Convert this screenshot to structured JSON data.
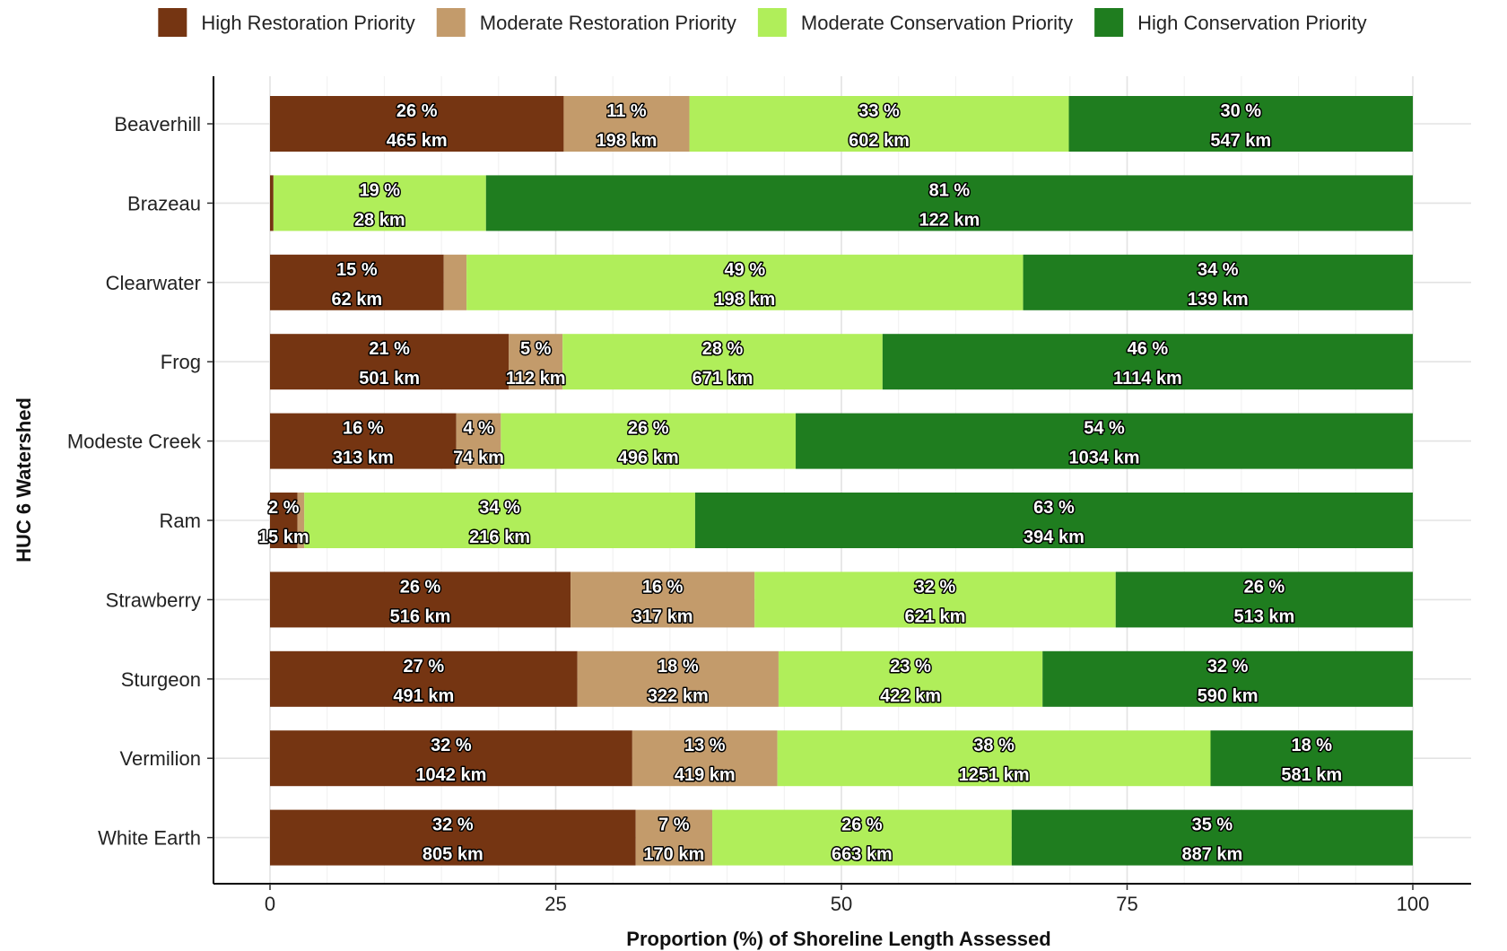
{
  "chart_data": {
    "type": "bar",
    "orientation": "horizontal",
    "stacked": true,
    "xlabel": "Proportion (%) of Shoreline Length Assessed",
    "ylabel": "HUC 6 Watershed",
    "xlim": [
      0,
      100
    ],
    "xticks": [
      0,
      25,
      50,
      75,
      100
    ],
    "grid": true,
    "legend_position": "top",
    "categories": [
      "Beaverhill",
      "Brazeau",
      "Clearwater",
      "Frog",
      "Modeste Creek",
      "Ram",
      "Strawberry",
      "Sturgeon",
      "Vermilion",
      "White Earth"
    ],
    "series": [
      {
        "name": "High Restoration Priority",
        "color": "#753512",
        "values": [
          25.7,
          0.3,
          15.2,
          20.9,
          16.3,
          2.4,
          26.3,
          26.9,
          31.7,
          32.0
        ],
        "pct_labels": [
          "26 %",
          "",
          "15 %",
          "21 %",
          "16 %",
          "2 %",
          "26 %",
          "27 %",
          "32 %",
          "32 %"
        ],
        "km_labels": [
          "465 km",
          "",
          "62 km",
          "501 km",
          "313 km",
          "15 km",
          "516 km",
          "491 km",
          "1042 km",
          "805 km"
        ]
      },
      {
        "name": "Moderate Restoration Priority",
        "color": "#c39b6b",
        "values": [
          11.0,
          0.0,
          2.0,
          4.7,
          3.9,
          0.6,
          16.1,
          17.6,
          12.7,
          6.7
        ],
        "pct_labels": [
          "11 %",
          "",
          "",
          "5 %",
          "4 %",
          "",
          "16 %",
          "18 %",
          "13 %",
          "7 %"
        ],
        "km_labels": [
          "198 km",
          "",
          "",
          "112 km",
          "74 km",
          "",
          "317 km",
          "322 km",
          "419 km",
          "170 km"
        ]
      },
      {
        "name": "Moderate Conservation Priority",
        "color": "#b0ee5a",
        "values": [
          33.2,
          18.6,
          48.7,
          28.0,
          25.8,
          34.2,
          31.6,
          23.1,
          37.9,
          26.2
        ],
        "pct_labels": [
          "33 %",
          "19 %",
          "49 %",
          "28 %",
          "26 %",
          "34 %",
          "32 %",
          "23 %",
          "38 %",
          "26 %"
        ],
        "km_labels": [
          "602 km",
          "28 km",
          "198 km",
          "671 km",
          "496 km",
          "216 km",
          "621 km",
          "422 km",
          "1251 km",
          "663 km"
        ]
      },
      {
        "name": "High Conservation Priority",
        "color": "#1f7d1f",
        "values": [
          30.1,
          81.1,
          34.1,
          46.4,
          54.0,
          62.8,
          26.0,
          32.4,
          17.7,
          35.1
        ],
        "pct_labels": [
          "30 %",
          "81 %",
          "34 %",
          "46 %",
          "54 %",
          "63 %",
          "26 %",
          "32 %",
          "18 %",
          "35 %"
        ],
        "km_labels": [
          "547 km",
          "122 km",
          "139 km",
          "1114 km",
          "1034 km",
          "394 km",
          "513 km",
          "590 km",
          "581 km",
          "887 km"
        ]
      }
    ]
  }
}
